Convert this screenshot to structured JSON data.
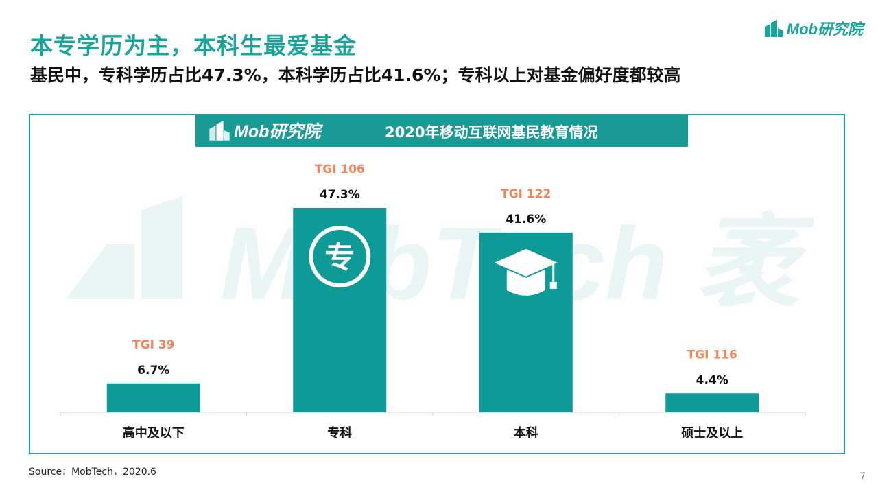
{
  "header": {
    "title": "本专学历为主，本科生最爱基金",
    "subtitle": "基民中，专科学历占比47.3%，本科学历占比41.6%；专科以上对基金偏好度都较高",
    "logo_text": "Mob研究院"
  },
  "panel": {
    "banner_logo_text": "Mob研究院",
    "banner_title": "2020年移动互联网基民教育情况",
    "watermark_text": "MobTech 袤博"
  },
  "chart_data": {
    "type": "bar",
    "title": "2020年移动互联网基民教育情况",
    "categories": [
      "高中及以下",
      "专科",
      "本科",
      "硕士及以上"
    ],
    "series": [
      {
        "values": [
          6.7,
          47.3,
          41.6,
          4.4
        ],
        "value_labels": [
          "6.7%",
          "47.3%",
          "41.6%",
          "4.4%"
        ],
        "tgi": [
          39,
          106,
          122,
          116
        ],
        "tgi_labels": [
          "TGI 39",
          "TGI 106",
          "TGI 122",
          "TGI 116"
        ]
      }
    ],
    "bar_icons": [
      "",
      "zhuan-circle-icon",
      "graduation-cap-icon",
      ""
    ],
    "ylim": [
      0,
      47.3
    ],
    "grid": false,
    "colors": {
      "bar": "#0e9a97",
      "tgi_label": "#f0855a",
      "value_label": "#111111"
    }
  },
  "footer": {
    "source": "Source：MobTech，2020.6",
    "page_number": "7"
  }
}
